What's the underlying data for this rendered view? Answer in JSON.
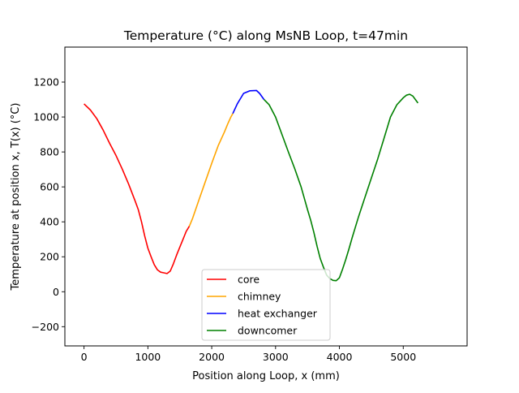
{
  "chart_data": {
    "type": "line",
    "title": "Temperature (°C) along MsNB Loop, t=47min",
    "xlabel": "Position along Loop, x (mm)",
    "ylabel": "Temperature at position x, T(x) (°C)",
    "xlim": [
      -300,
      6000
    ],
    "ylim": [
      -310,
      1400
    ],
    "xticks": [
      0,
      1000,
      2000,
      3000,
      4000,
      5000
    ],
    "yticks": [
      -200,
      0,
      200,
      400,
      600,
      800,
      1000,
      1200
    ],
    "grid": false,
    "legend_position": "lower-center",
    "series": [
      {
        "name": "core",
        "color": "#ff0000",
        "points": [
          [
            0,
            1075
          ],
          [
            100,
            1040
          ],
          [
            200,
            990
          ],
          [
            300,
            925
          ],
          [
            400,
            850
          ],
          [
            500,
            780
          ],
          [
            600,
            700
          ],
          [
            700,
            615
          ],
          [
            800,
            520
          ],
          [
            850,
            470
          ],
          [
            900,
            400
          ],
          [
            950,
            320
          ],
          [
            1000,
            250
          ],
          [
            1050,
            200
          ],
          [
            1100,
            155
          ],
          [
            1150,
            125
          ],
          [
            1200,
            112
          ],
          [
            1250,
            108
          ],
          [
            1300,
            104
          ],
          [
            1350,
            118
          ],
          [
            1400,
            160
          ],
          [
            1450,
            210
          ],
          [
            1500,
            255
          ],
          [
            1550,
            300
          ],
          [
            1600,
            345
          ],
          [
            1650,
            375
          ]
        ]
      },
      {
        "name": "chimney",
        "color": "#ffa500",
        "points": [
          [
            1650,
            375
          ],
          [
            1700,
            420
          ],
          [
            1800,
            525
          ],
          [
            1900,
            630
          ],
          [
            2000,
            735
          ],
          [
            2100,
            835
          ],
          [
            2200,
            915
          ],
          [
            2250,
            960
          ],
          [
            2300,
            1000
          ],
          [
            2330,
            1020
          ]
        ]
      },
      {
        "name": "heat exchanger",
        "color": "#0000ff",
        "points": [
          [
            2330,
            1020
          ],
          [
            2400,
            1075
          ],
          [
            2500,
            1135
          ],
          [
            2600,
            1150
          ],
          [
            2700,
            1152
          ],
          [
            2750,
            1135
          ],
          [
            2820,
            1100
          ]
        ]
      },
      {
        "name": "downcomer",
        "color": "#008000",
        "points": [
          [
            2820,
            1100
          ],
          [
            2900,
            1070
          ],
          [
            3000,
            1000
          ],
          [
            3100,
            900
          ],
          [
            3200,
            800
          ],
          [
            3300,
            705
          ],
          [
            3400,
            600
          ],
          [
            3500,
            470
          ],
          [
            3550,
            410
          ],
          [
            3600,
            340
          ],
          [
            3650,
            260
          ],
          [
            3700,
            190
          ],
          [
            3750,
            140
          ],
          [
            3800,
            95
          ],
          [
            3850,
            75
          ],
          [
            3900,
            65
          ],
          [
            3950,
            63
          ],
          [
            4000,
            80
          ],
          [
            4050,
            130
          ],
          [
            4100,
            185
          ],
          [
            4150,
            245
          ],
          [
            4200,
            310
          ],
          [
            4300,
            430
          ],
          [
            4400,
            540
          ],
          [
            4500,
            650
          ],
          [
            4600,
            760
          ],
          [
            4700,
            880
          ],
          [
            4750,
            940
          ],
          [
            4800,
            1000
          ],
          [
            4900,
            1070
          ],
          [
            5000,
            1110
          ],
          [
            5050,
            1125
          ],
          [
            5100,
            1130
          ],
          [
            5150,
            1120
          ],
          [
            5200,
            1095
          ],
          [
            5230,
            1080
          ]
        ]
      }
    ]
  }
}
